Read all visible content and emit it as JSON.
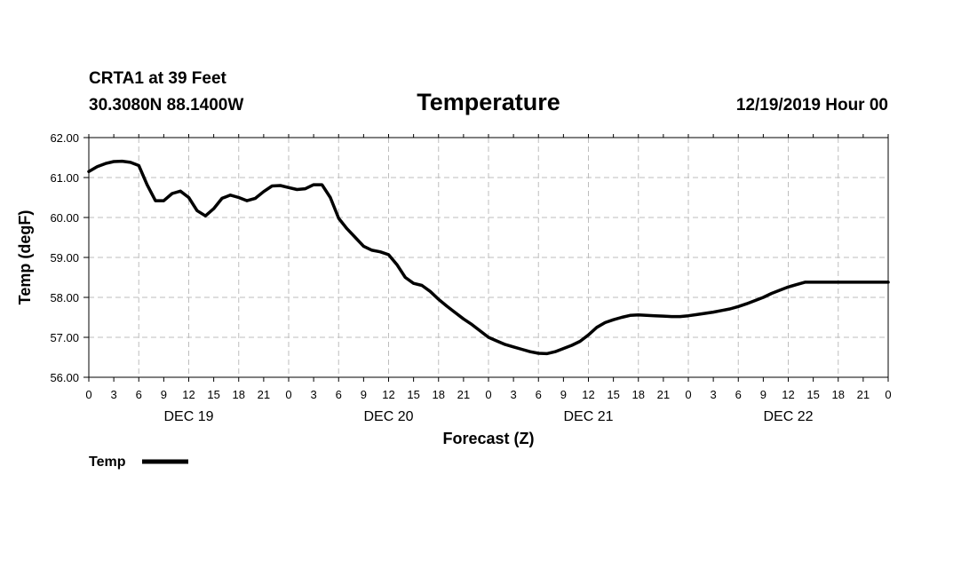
{
  "header": {
    "station": "CRTA1 at 39 Feet",
    "coords": "30.3080N 88.1400W",
    "title": "Temperature",
    "run": "12/19/2019 Hour 00"
  },
  "legend": {
    "label": "Temp"
  },
  "chart_data": {
    "type": "line",
    "title": "Temperature",
    "xlabel": "Forecast (Z)",
    "ylabel": "Temp (degF)",
    "ylim": [
      56.0,
      62.0
    ],
    "yticks": [
      "56.00",
      "57.00",
      "58.00",
      "59.00",
      "60.00",
      "61.00",
      "62.00"
    ],
    "xlim": [
      0,
      96
    ],
    "xtick_labels": [
      "0",
      "3",
      "6",
      "9",
      "12",
      "15",
      "18",
      "21",
      "0",
      "3",
      "6",
      "9",
      "12",
      "15",
      "18",
      "21",
      "0",
      "3",
      "6",
      "9",
      "12",
      "15",
      "18",
      "21",
      "0",
      "3",
      "6",
      "9",
      "12",
      "15",
      "18",
      "21",
      "0"
    ],
    "day_labels": [
      {
        "label": "DEC 19",
        "hour": 12
      },
      {
        "label": "DEC 20",
        "hour": 36
      },
      {
        "label": "DEC 21",
        "hour": 60
      },
      {
        "label": "DEC 22",
        "hour": 84
      }
    ],
    "grid": true,
    "series": [
      {
        "name": "Temp",
        "color": "#000000",
        "x": [
          0,
          1,
          2,
          3,
          4,
          5,
          6,
          7,
          8,
          9,
          10,
          11,
          12,
          13,
          14,
          15,
          16,
          17,
          18,
          19,
          20,
          21,
          22,
          23,
          24,
          25,
          26,
          27,
          28,
          29,
          30,
          31,
          32,
          33,
          34,
          35,
          36,
          37,
          38,
          39,
          40,
          41,
          42,
          43,
          44,
          45,
          46,
          47,
          48,
          49,
          50,
          51,
          52,
          53,
          54,
          55,
          56,
          57,
          58,
          59,
          60,
          61,
          62,
          63,
          64,
          65,
          66,
          67,
          68,
          69,
          70,
          71,
          72,
          73,
          74,
          75,
          76,
          77,
          78,
          79,
          80,
          81,
          82,
          83,
          84,
          85,
          86,
          87,
          88,
          89,
          90,
          91,
          92,
          93,
          94,
          95,
          96
        ],
        "values": [
          61.15,
          61.27,
          61.35,
          61.4,
          61.41,
          61.38,
          61.3,
          60.82,
          60.42,
          60.42,
          60.6,
          60.66,
          60.5,
          60.17,
          60.04,
          60.22,
          60.48,
          60.56,
          60.5,
          60.42,
          60.48,
          60.65,
          60.79,
          60.8,
          60.75,
          60.7,
          60.72,
          60.82,
          60.82,
          60.5,
          59.98,
          59.72,
          59.5,
          59.28,
          59.18,
          59.14,
          59.07,
          58.82,
          58.5,
          58.35,
          58.3,
          58.15,
          57.95,
          57.78,
          57.62,
          57.46,
          57.32,
          57.16,
          57.0,
          56.91,
          56.82,
          56.76,
          56.7,
          56.64,
          56.6,
          56.59,
          56.64,
          56.72,
          56.8,
          56.9,
          57.06,
          57.25,
          57.37,
          57.44,
          57.5,
          57.55,
          57.56,
          57.55,
          57.54,
          57.53,
          57.52,
          57.52,
          57.54,
          57.57,
          57.6,
          57.63,
          57.67,
          57.71,
          57.77,
          57.84,
          57.92,
          58.0,
          58.1,
          58.18,
          58.26,
          58.32,
          58.38,
          58.38,
          58.38,
          58.38,
          58.38,
          58.38,
          58.38,
          58.38,
          58.38,
          58.38,
          58.38
        ]
      }
    ]
  }
}
